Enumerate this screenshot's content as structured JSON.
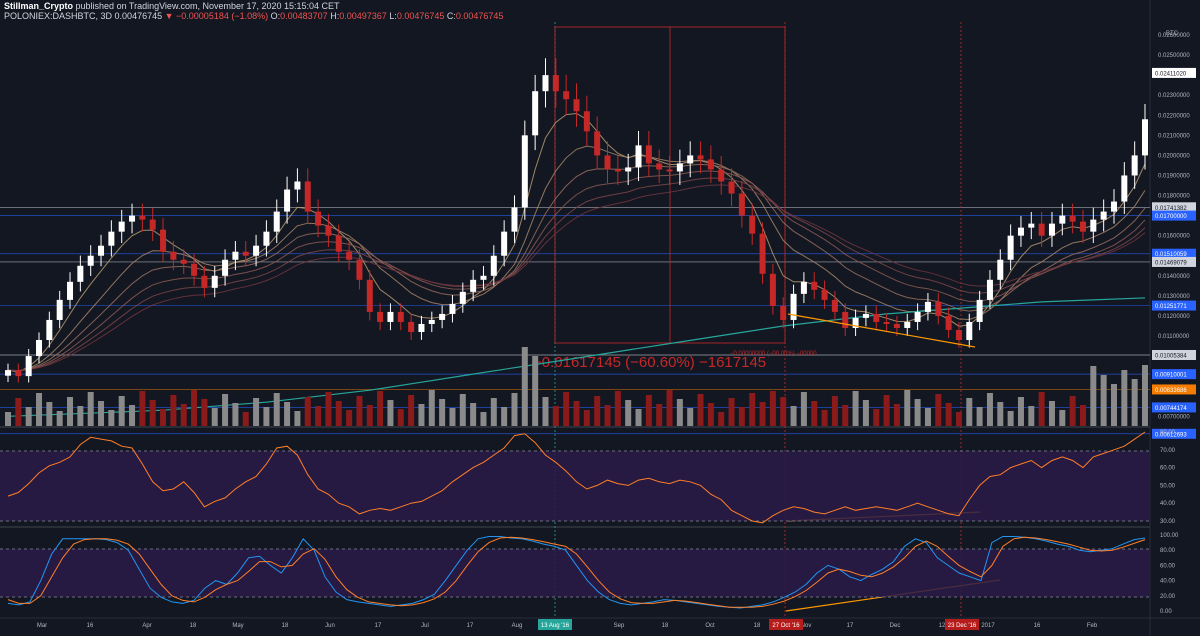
{
  "header": {
    "author": "Stillman_Crypto",
    "published": "published on TradingView.com, November 17, 2020 15:15:04 CET",
    "symbol": "POLONIEX:DASHBTC, 3D",
    "last": "0.00476745",
    "change": "▼ −0.00005184 (−1.08%)",
    "o_label": "O:",
    "o_value": "0.00483707",
    "h_label": "H:",
    "h_value": "0.00497367",
    "l_label": "L:",
    "l_value": "0.00476745",
    "c_label": "C:",
    "c_value": "0.00476745"
  },
  "price_axis": {
    "currency": "BTC",
    "labels": [
      "0.02600000",
      "0.02500000",
      "0.02300000",
      "0.02200000",
      "0.02100000",
      "0.02000000",
      "0.01900000",
      "0.01800000",
      "0.01600000",
      "0.01400000",
      "0.01300000",
      "0.01200000",
      "0.01100000",
      "0.00700000"
    ],
    "tags": [
      {
        "text": "0.02411020",
        "color": "#ffffff",
        "fg": "#131722"
      },
      {
        "text": "0.01741382",
        "color": "#d1d4dc",
        "fg": "#131722"
      },
      {
        "text": "0.01700000",
        "color": "#2962ff",
        "fg": "#ffffff"
      },
      {
        "text": "0.01510059",
        "color": "#2962ff",
        "fg": "#ffffff"
      },
      {
        "text": "0.01469079",
        "color": "#d1d4dc",
        "fg": "#131722"
      },
      {
        "text": "0.01251771",
        "color": "#2962ff",
        "fg": "#ffffff"
      },
      {
        "text": "0.01005384",
        "color": "#d1d4dc",
        "fg": "#131722"
      },
      {
        "text": "0.00910001",
        "color": "#2962ff",
        "fg": "#ffffff"
      },
      {
        "text": "0.00833686",
        "color": "#f57c00",
        "fg": "#ffffff"
      },
      {
        "text": "0.00744174",
        "color": "#2962ff",
        "fg": "#ffffff"
      },
      {
        "text": "0.00612693",
        "color": "#2962ff",
        "fg": "#ffffff"
      }
    ]
  },
  "measure": {
    "text": "−0.01617145 (−60.60%) −1617145",
    "small_text": "−0.00000000 (−00.00%) −00000"
  },
  "rsi_axis": {
    "labels": [
      "80.00",
      "70.00",
      "60.00",
      "50.00",
      "40.00",
      "30.00"
    ]
  },
  "stoch_axis": {
    "labels": [
      "100.00",
      "80.00",
      "60.00",
      "40.00",
      "20.00",
      "0.00"
    ]
  },
  "time_axis": {
    "labels": [
      "Mar",
      "16",
      "Apr",
      "18",
      "May",
      "18",
      "Jun",
      "17",
      "Jul",
      "17",
      "Aug",
      "Sep",
      "18",
      "Oct",
      "18",
      "Nov",
      "17",
      "Dec",
      "12",
      "2017",
      "16",
      "Feb"
    ],
    "highlights": [
      {
        "text": "13 Aug '16",
        "color": "#26a69a"
      },
      {
        "text": "27 Oct '16",
        "color": "#b71c1c"
      },
      {
        "text": "23 Dec '16",
        "color": "#b71c1c"
      }
    ]
  },
  "colors": {
    "background": "#131722",
    "up": "#ffffff",
    "down": "#c62828",
    "volume_up": "#8a8a8a",
    "volume_down": "#8b1a1a",
    "rsi_fill": "#2a1a48",
    "rsi_line": "#ff7f27",
    "stoch_k": "#2196f3",
    "stoch_d": "#ff7f27",
    "trendline": "#ff9800",
    "ma200": "#26a69a"
  },
  "chart_data": {
    "type": "candlestick",
    "price_closes": [
      0.0093,
      0.009,
      0.01,
      0.0108,
      0.0118,
      0.0128,
      0.0137,
      0.0145,
      0.015,
      0.0155,
      0.0162,
      0.0167,
      0.017,
      0.0168,
      0.0163,
      0.0152,
      0.0148,
      0.0146,
      0.014,
      0.0134,
      0.014,
      0.0148,
      0.0152,
      0.015,
      0.0155,
      0.0162,
      0.0172,
      0.0183,
      0.0187,
      0.0172,
      0.0165,
      0.016,
      0.0152,
      0.0148,
      0.0138,
      0.0122,
      0.0117,
      0.0122,
      0.0117,
      0.0112,
      0.0116,
      0.0118,
      0.0121,
      0.0126,
      0.0132,
      0.0138,
      0.014,
      0.015,
      0.0162,
      0.0174,
      0.021,
      0.0232,
      0.024,
      0.0232,
      0.0228,
      0.0222,
      0.0212,
      0.02,
      0.0193,
      0.0192,
      0.0194,
      0.0205,
      0.0196,
      0.0193,
      0.0192,
      0.0196,
      0.02,
      0.0198,
      0.0193,
      0.0187,
      0.0181,
      0.017,
      0.0161,
      0.0141,
      0.0125,
      0.0118,
      0.0131,
      0.0137,
      0.0133,
      0.0128,
      0.0122,
      0.0114,
      0.0119,
      0.0121,
      0.0117,
      0.0116,
      0.0114,
      0.0117,
      0.0122,
      0.0127,
      0.012,
      0.0113,
      0.0108,
      0.0117,
      0.0128,
      0.0138,
      0.0148,
      0.016,
      0.0164,
      0.0166,
      0.016,
      0.0166,
      0.017,
      0.0167,
      0.0162,
      0.0168,
      0.0172,
      0.0177,
      0.019,
      0.02,
      0.0218
    ],
    "ma200": [
      0.007,
      0.0071,
      0.0072,
      0.0073,
      0.0075,
      0.0077,
      0.008,
      0.0083,
      0.0087,
      0.0091,
      0.0095,
      0.0099,
      0.0103,
      0.0107,
      0.0111,
      0.0115,
      0.0118,
      0.0121,
      0.0123,
      0.0125,
      0.0127,
      0.0128,
      0.0129
    ],
    "rsi": [
      44,
      46,
      51,
      57,
      61,
      63,
      66,
      73,
      77,
      76,
      75,
      72,
      71,
      62,
      52,
      47,
      48,
      52,
      46,
      38,
      41,
      43,
      48,
      52,
      55,
      62,
      71,
      72,
      67,
      56,
      48,
      45,
      40,
      38,
      34,
      36,
      37,
      36,
      38,
      40,
      41,
      44,
      47,
      52,
      56,
      60,
      63,
      67,
      71,
      78,
      79,
      74,
      67,
      63,
      58,
      52,
      48,
      50,
      53,
      51,
      50,
      53,
      54,
      52,
      51,
      53,
      52,
      50,
      45,
      42,
      36,
      33,
      30,
      29,
      33,
      36,
      38,
      37,
      35,
      34,
      36,
      38,
      36,
      37,
      38,
      37,
      36,
      38,
      40,
      38,
      36,
      34,
      33,
      42,
      50,
      55,
      56,
      60,
      62,
      64,
      60,
      64,
      66,
      64,
      60,
      66,
      68,
      70,
      72,
      76,
      80
    ],
    "stoch_k": [
      10,
      8,
      12,
      40,
      75,
      95,
      95,
      95,
      95,
      94,
      90,
      80,
      55,
      30,
      18,
      12,
      10,
      14,
      30,
      40,
      35,
      50,
      70,
      72,
      60,
      50,
      70,
      95,
      80,
      45,
      25,
      15,
      12,
      10,
      8,
      6,
      8,
      10,
      15,
      22,
      40,
      60,
      80,
      95,
      98,
      98,
      96,
      95,
      92,
      88,
      85,
      80,
      60,
      40,
      25,
      15,
      10,
      8,
      10,
      12,
      15,
      14,
      12,
      10,
      8,
      6,
      5,
      4,
      6,
      8,
      12,
      18,
      25,
      35,
      50,
      60,
      55,
      45,
      40,
      48,
      55,
      65,
      85,
      95,
      90,
      70,
      60,
      50,
      45,
      40,
      90,
      98,
      98,
      97,
      95,
      92,
      88,
      85,
      80,
      78,
      80,
      82,
      88,
      94,
      96
    ],
    "stoch_d": [
      15,
      10,
      10,
      20,
      45,
      70,
      88,
      94,
      95,
      95,
      93,
      88,
      75,
      55,
      35,
      20,
      14,
      12,
      18,
      28,
      35,
      40,
      52,
      65,
      65,
      58,
      60,
      75,
      82,
      68,
      45,
      28,
      18,
      12,
      10,
      8,
      7,
      8,
      11,
      16,
      25,
      40,
      60,
      78,
      90,
      96,
      97,
      96,
      94,
      91,
      88,
      85,
      75,
      58,
      40,
      25,
      16,
      11,
      10,
      10,
      12,
      14,
      13,
      11,
      9,
      7,
      5,
      5,
      5,
      6,
      9,
      13,
      19,
      27,
      38,
      50,
      55,
      52,
      47,
      45,
      50,
      58,
      70,
      85,
      92,
      85,
      72,
      60,
      52,
      45,
      60,
      85,
      95,
      97,
      96,
      94,
      91,
      88,
      84,
      80,
      79,
      80,
      84,
      89,
      94
    ]
  }
}
